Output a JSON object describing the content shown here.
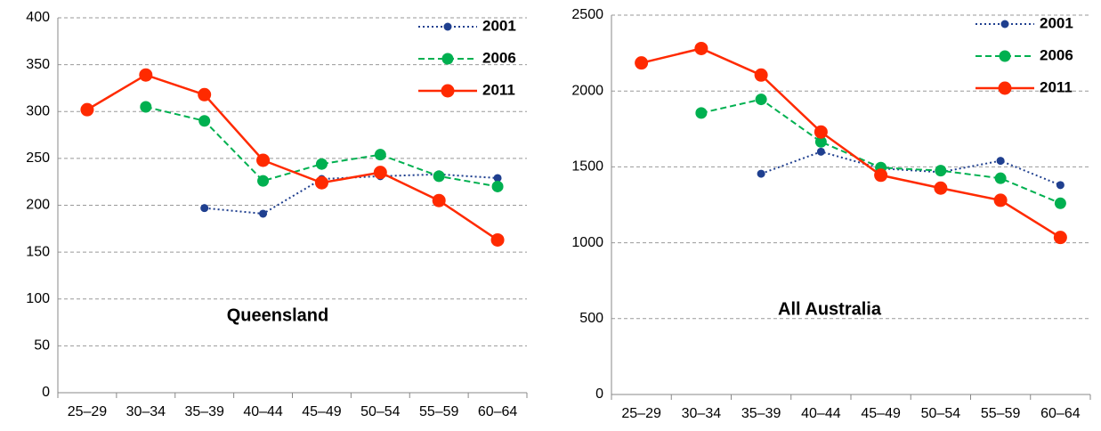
{
  "chart_data": [
    {
      "type": "line",
      "annotation": "Queensland",
      "categories": [
        "25–29",
        "30–34",
        "35–39",
        "40–44",
        "45–49",
        "50–54",
        "55–59",
        "60–64"
      ],
      "series": [
        {
          "name": "2001",
          "color": "#1f3f8f",
          "style": "dotted",
          "values": [
            null,
            null,
            197,
            191,
            228,
            231,
            233,
            229
          ]
        },
        {
          "name": "2006",
          "color": "#00b050",
          "style": "dashed",
          "values": [
            null,
            305,
            290,
            226,
            244,
            254,
            231,
            220
          ]
        },
        {
          "name": "2011",
          "color": "#ff2a00",
          "style": "solid",
          "values": [
            302,
            339,
            318,
            248,
            224,
            235,
            205,
            163
          ]
        }
      ],
      "ylim": [
        0,
        400
      ],
      "yticks": [
        0,
        50,
        100,
        150,
        200,
        250,
        300,
        350,
        400
      ],
      "grid": true,
      "legend": "top-right"
    },
    {
      "type": "line",
      "annotation": "All Australia",
      "categories": [
        "25–29",
        "30–34",
        "35–39",
        "40–44",
        "45–49",
        "50–54",
        "55–59",
        "60–64"
      ],
      "series": [
        {
          "name": "2001",
          "color": "#1f3f8f",
          "style": "dotted",
          "values": [
            null,
            null,
            1455,
            1600,
            1490,
            1465,
            1540,
            1380
          ]
        },
        {
          "name": "2006",
          "color": "#00b050",
          "style": "dashed",
          "values": [
            null,
            1855,
            1945,
            1665,
            1495,
            1475,
            1425,
            1260
          ]
        },
        {
          "name": "2011",
          "color": "#ff2a00",
          "style": "solid",
          "values": [
            2185,
            2280,
            2105,
            1730,
            1445,
            1360,
            1280,
            1035
          ]
        }
      ],
      "ylim": [
        0,
        2500
      ],
      "yticks": [
        0,
        500,
        1000,
        1500,
        2000,
        2500
      ],
      "grid": true,
      "legend": "top-right"
    }
  ]
}
